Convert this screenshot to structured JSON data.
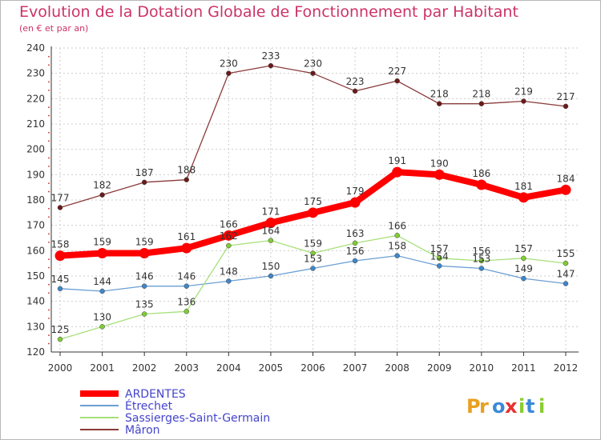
{
  "chart_data": {
    "type": "line",
    "title": "Evolution de la Dotation Globale de Fonctionnement par Habitant",
    "subtitle": "(en € et par an)",
    "categories": [
      "2000",
      "2001",
      "2002",
      "2003",
      "2004",
      "2005",
      "2006",
      "2007",
      "2008",
      "2009",
      "2010",
      "2011",
      "2012"
    ],
    "ylim": [
      120,
      240
    ],
    "yticks": [
      120,
      130,
      140,
      150,
      160,
      170,
      180,
      190,
      200,
      210,
      220,
      230,
      240
    ],
    "grid": true,
    "legend_position": "bottom-left",
    "series": [
      {
        "name": "ARDENTES",
        "color": "#ff0000",
        "marker_color": "#ff0000",
        "emphasis": true,
        "values": [
          158,
          159,
          159,
          161,
          166,
          171,
          175,
          179,
          191,
          190,
          186,
          181,
          184
        ]
      },
      {
        "name": "Étrechet",
        "color": "#6b9fd4",
        "marker_color": "#3f86c8",
        "emphasis": false,
        "values": [
          145,
          144,
          146,
          146,
          148,
          150,
          153,
          156,
          158,
          154,
          153,
          149,
          147
        ]
      },
      {
        "name": "Sassierges-Saint-Germain",
        "color": "#a6e07a",
        "marker_color": "#80cc33",
        "emphasis": false,
        "values": [
          125,
          130,
          135,
          136,
          162,
          164,
          159,
          163,
          166,
          157,
          156,
          157,
          155
        ]
      },
      {
        "name": "Mâron",
        "color": "#8b3a3a",
        "marker_color": "#6b1a1a",
        "emphasis": false,
        "values": [
          177,
          182,
          187,
          188,
          230,
          233,
          230,
          223,
          227,
          218,
          218,
          219,
          217
        ]
      }
    ]
  },
  "logo": {
    "text": "Proxiti",
    "colors": [
      "#e8a020",
      "#3a8ad8",
      "#e83030",
      "#8acc30"
    ]
  },
  "colors": {
    "title": "#cc3366",
    "axis": "#333333",
    "grid": "#cccccc",
    "legend_text": "#4444cc"
  }
}
